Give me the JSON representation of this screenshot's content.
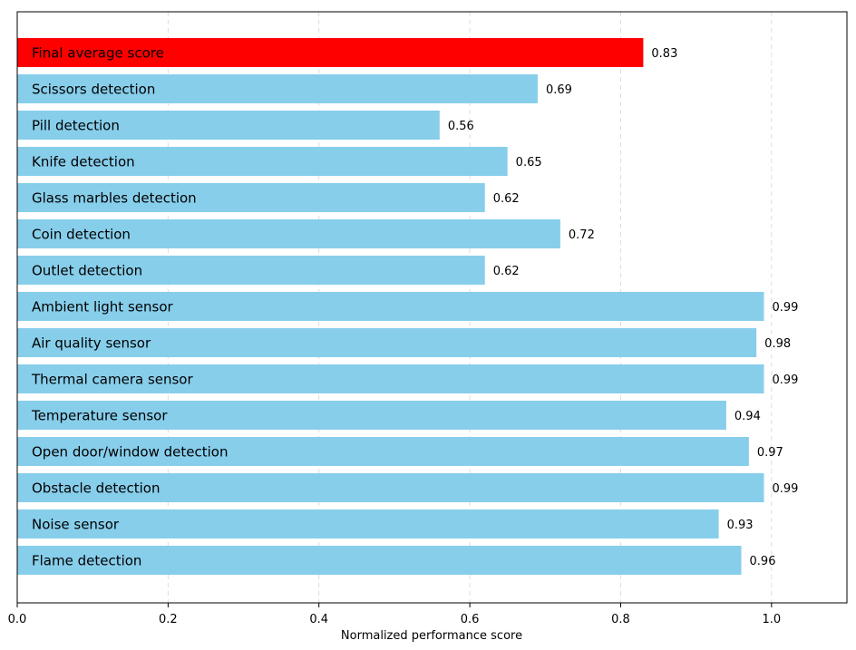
{
  "chart_data": {
    "type": "bar",
    "orientation": "horizontal",
    "categories": [
      "Final average score",
      "Scissors detection",
      "Pill detection",
      "Knife detection",
      "Glass marbles detection",
      "Coin detection",
      "Outlet detection",
      "Ambient light sensor",
      "Air quality sensor",
      "Thermal camera sensor",
      "Temperature sensor",
      "Open door/window detection",
      "Obstacle detection",
      "Noise sensor",
      "Flame detection"
    ],
    "values": [
      0.83,
      0.69,
      0.56,
      0.65,
      0.62,
      0.72,
      0.62,
      0.99,
      0.98,
      0.99,
      0.94,
      0.97,
      0.99,
      0.93,
      0.96
    ],
    "value_labels": [
      "0.83",
      "0.69",
      "0.56",
      "0.65",
      "0.62",
      "0.72",
      "0.62",
      "0.99",
      "0.98",
      "0.99",
      "0.94",
      "0.97",
      "0.99",
      "0.93",
      "0.96"
    ],
    "bar_colors": [
      "#ff0000",
      "#87ceeb",
      "#87ceeb",
      "#87ceeb",
      "#87ceeb",
      "#87ceeb",
      "#87ceeb",
      "#87ceeb",
      "#87ceeb",
      "#87ceeb",
      "#87ceeb",
      "#87ceeb",
      "#87ceeb",
      "#87ceeb",
      "#87ceeb"
    ],
    "xlabel": "Normalized performance score",
    "ylabel": "",
    "title": "",
    "xlim": [
      0,
      1.1
    ],
    "xticks": [
      0.0,
      0.2,
      0.4,
      0.6,
      0.8,
      1.0
    ],
    "xtick_labels": [
      "0.0",
      "0.2",
      "0.4",
      "0.6",
      "0.8",
      "1.0"
    ],
    "grid": "x-dashed",
    "labels_inside_bars": true
  }
}
